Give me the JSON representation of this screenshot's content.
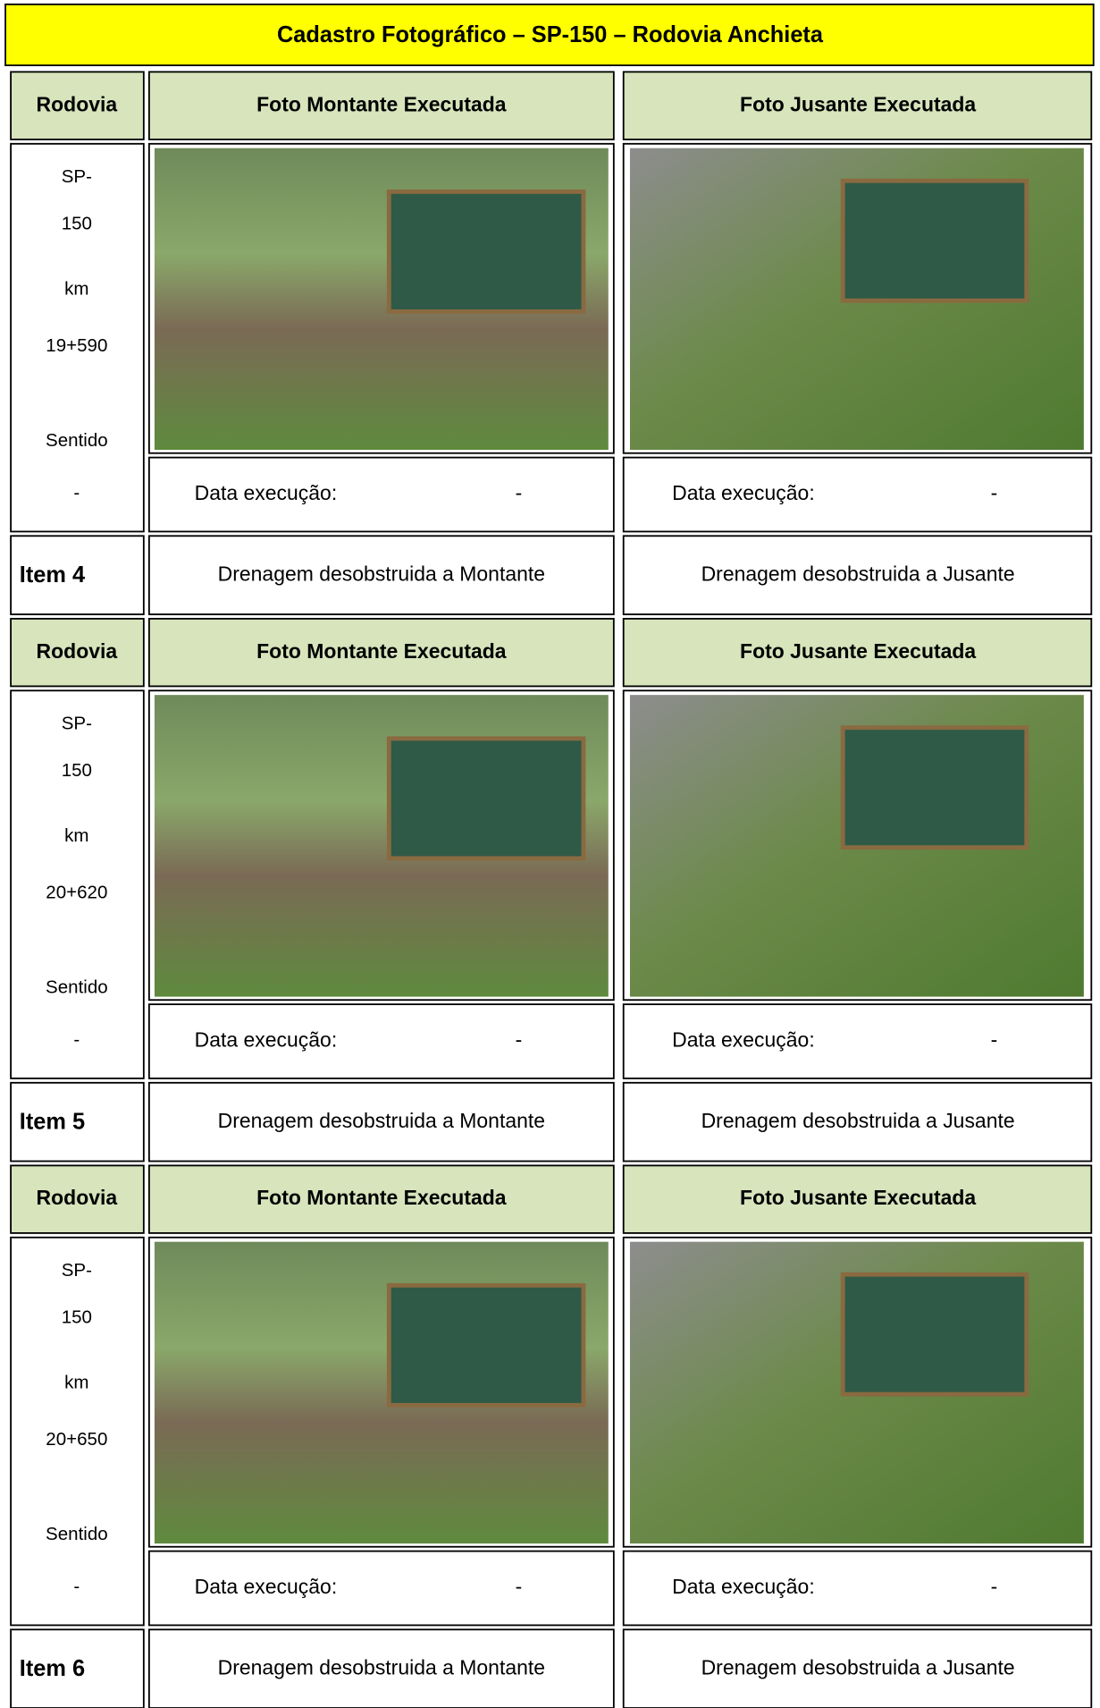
{
  "title": "Cadastro Fotográfico – SP-150 – Rodovia Anchieta",
  "blocks": [
    {
      "header": {
        "rodovia": "Rodovia",
        "montante": "Foto Montante Executada",
        "jusante": "Foto Jusante Executada"
      },
      "location": [
        "SP-",
        "150",
        "km",
        "19+590",
        "Sentido",
        "-"
      ],
      "montante_date": {
        "label": "Data execução:",
        "value": "-"
      },
      "jusante_date": {
        "label": "Data execução:",
        "value": "-"
      },
      "item": "Item 4",
      "montante_caption": "Drenagem desobstruida a Montante",
      "jusante_caption": "Drenagem desobstruida a Jusante"
    },
    {
      "header": {
        "rodovia": "Rodovia",
        "montante": "Foto Montante Executada",
        "jusante": "Foto Jusante Executada"
      },
      "location": [
        "SP-",
        "150",
        "km",
        "20+620",
        "Sentido",
        "-"
      ],
      "montante_date": {
        "label": "Data execução:",
        "value": "-"
      },
      "jusante_date": {
        "label": "Data execução:",
        "value": "-"
      },
      "item": "Item 5",
      "montante_caption": "Drenagem desobstruida a Montante",
      "jusante_caption": "Drenagem desobstruida a Jusante"
    },
    {
      "header": {
        "rodovia": "Rodovia",
        "montante": "Foto Montante Executada",
        "jusante": "Foto Jusante Executada"
      },
      "location": [
        "SP-",
        "150",
        "km",
        "20+650",
        "Sentido",
        "-"
      ],
      "montante_date": {
        "label": "Data execução:",
        "value": "-"
      },
      "jusante_date": {
        "label": "Data execução:",
        "value": "-"
      },
      "item": "Item 6",
      "montante_caption": "Drenagem desobstruida a Montante",
      "jusante_caption": "Drenagem desobstruida a Jusante"
    }
  ]
}
